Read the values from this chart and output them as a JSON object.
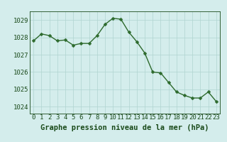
{
  "x": [
    0,
    1,
    2,
    3,
    4,
    5,
    6,
    7,
    8,
    9,
    10,
    11,
    12,
    13,
    14,
    15,
    16,
    17,
    18,
    19,
    20,
    21,
    22,
    23
  ],
  "y": [
    1027.8,
    1028.2,
    1028.1,
    1027.8,
    1027.85,
    1027.55,
    1027.65,
    1027.65,
    1028.1,
    1028.75,
    1029.1,
    1029.05,
    1028.3,
    1027.75,
    1027.1,
    1026.0,
    1025.95,
    1025.4,
    1024.85,
    1024.65,
    1024.5,
    1024.5,
    1024.85,
    1024.3
  ],
  "line_color": "#2d6a2d",
  "marker": "D",
  "marker_size": 2.5,
  "line_width": 1.0,
  "bg_color": "#d4edec",
  "grid_color": "#b0d4d0",
  "xlabel": "Graphe pression niveau de la mer (hPa)",
  "xlabel_color": "#1a4a1a",
  "xlabel_fontsize": 7.5,
  "tick_color": "#1a4a1a",
  "tick_fontsize": 6.5,
  "ylim": [
    1023.6,
    1029.5
  ],
  "xlim": [
    -0.5,
    23.5
  ],
  "yticks": [
    1024,
    1025,
    1026,
    1027,
    1028,
    1029
  ],
  "xticks": [
    0,
    1,
    2,
    3,
    4,
    5,
    6,
    7,
    8,
    9,
    10,
    11,
    12,
    13,
    14,
    15,
    16,
    17,
    18,
    19,
    20,
    21,
    22,
    23
  ]
}
